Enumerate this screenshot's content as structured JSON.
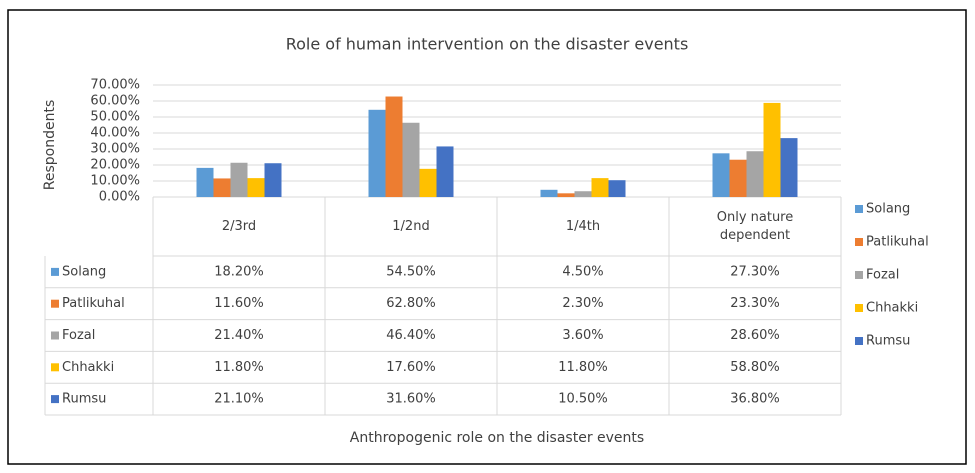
{
  "chart_data": {
    "type": "bar",
    "title": "Role of human intervention on the disaster events",
    "y_label": "Respondents",
    "x_label": "Anthropogenic role on the disaster events",
    "categories": [
      "2/3rd",
      "1/2nd",
      "1/4th",
      "Only nature dependent"
    ],
    "series": [
      {
        "name": "Solang",
        "color": "#5b9bd5",
        "values": [
          18.2,
          54.5,
          4.5,
          27.3
        ],
        "value_labels": [
          "18.20%",
          "54.50%",
          "4.50%",
          "27.30%"
        ]
      },
      {
        "name": "Patlikuhal",
        "color": "#ed7d31",
        "values": [
          11.6,
          62.8,
          2.3,
          23.3
        ],
        "value_labels": [
          "11.60%",
          "62.80%",
          "2.30%",
          "23.30%"
        ]
      },
      {
        "name": "Fozal",
        "color": "#a5a5a5",
        "values": [
          21.4,
          46.4,
          3.6,
          28.6
        ],
        "value_labels": [
          "21.40%",
          "46.40%",
          "3.60%",
          "28.60%"
        ]
      },
      {
        "name": "Chhakki",
        "color": "#ffc000",
        "values": [
          11.8,
          17.6,
          11.8,
          58.8
        ],
        "value_labels": [
          "11.80%",
          "17.60%",
          "11.80%",
          "58.80%"
        ]
      },
      {
        "name": "Rumsu",
        "color": "#4472c4",
        "values": [
          21.1,
          31.6,
          10.5,
          36.8
        ],
        "value_labels": [
          "21.10%",
          "31.60%",
          "10.50%",
          "36.80%"
        ]
      }
    ],
    "ylim": [
      0,
      70
    ],
    "yticks": [
      {
        "value": 0,
        "label": "0.00%"
      },
      {
        "value": 10,
        "label": "10.00%"
      },
      {
        "value": 20,
        "label": "20.00%"
      },
      {
        "value": 30,
        "label": "30.00%"
      },
      {
        "value": 40,
        "label": "40.00%"
      },
      {
        "value": 50,
        "label": "50.00%"
      },
      {
        "value": 60,
        "label": "60.00%"
      },
      {
        "value": 70,
        "label": "70.00%"
      }
    ],
    "grid": true,
    "legend": "right"
  }
}
